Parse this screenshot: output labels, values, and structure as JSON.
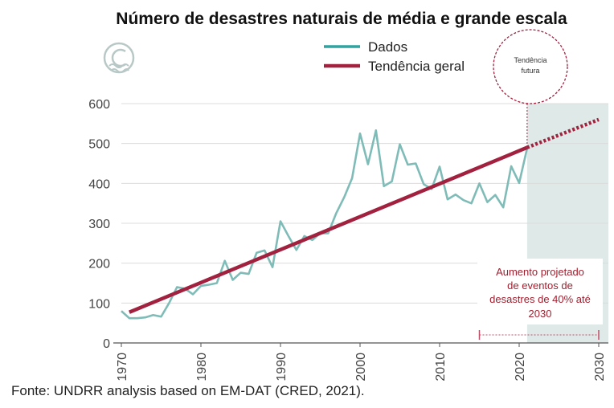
{
  "chart_data": {
    "type": "line",
    "title": "Número de desastres naturais de média e grande escala",
    "xlim": [
      1970,
      2030
    ],
    "ylim": [
      0,
      600
    ],
    "x_ticks": [
      "1970",
      "1980",
      "1990",
      "2000",
      "2010",
      "2020",
      "2030"
    ],
    "y_ticks": [
      "0",
      "100",
      "200",
      "300",
      "400",
      "500",
      "600"
    ],
    "grid": "horizontal",
    "legend_position": "top-center",
    "series": [
      {
        "name": "Dados",
        "color": "#7fbcb8",
        "x": [
          1970,
          1971,
          1972,
          1973,
          1974,
          1975,
          1976,
          1977,
          1978,
          1979,
          1980,
          1981,
          1982,
          1983,
          1984,
          1985,
          1986,
          1987,
          1988,
          1989,
          1990,
          1991,
          1992,
          1993,
          1994,
          1995,
          1996,
          1997,
          1998,
          1999,
          2000,
          2001,
          2002,
          2003,
          2004,
          2005,
          2006,
          2007,
          2008,
          2009,
          2010,
          2011,
          2012,
          2013,
          2014,
          2015,
          2016,
          2017,
          2018,
          2019,
          2020,
          2021
        ],
        "values": [
          80,
          62,
          62,
          64,
          70,
          66,
          100,
          140,
          136,
          122,
          143,
          146,
          150,
          206,
          158,
          176,
          173,
          226,
          232,
          190,
          305,
          268,
          233,
          268,
          258,
          275,
          275,
          325,
          365,
          413,
          525,
          448,
          533,
          393,
          405,
          498,
          447,
          450,
          398,
          386,
          442,
          360,
          372,
          358,
          350,
          400,
          353,
          371,
          340,
          443,
          401,
          488
        ]
      },
      {
        "name": "Tendência geral",
        "color": "#a1213f",
        "x": [
          1971,
          2021
        ],
        "values": [
          77,
          490
        ]
      },
      {
        "name": "",
        "color": "#a1213f",
        "style": "dotted",
        "x": [
          2021,
          2030
        ],
        "values": [
          490,
          560
        ]
      }
    ],
    "shaded_region": {
      "x": [
        2021,
        2030
      ],
      "color": "#dfe9e7"
    },
    "annotations": {
      "circle_label": [
        "Tendência",
        "futura"
      ],
      "projection_text": [
        "Aumento  projetado",
        "de eventos de",
        "desastres de 40% até",
        "2030"
      ],
      "projection_range": [
        2015,
        2030
      ]
    }
  },
  "source": "Fonte: UNDRR analysis based on EM-DAT (CRED, 2021).",
  "logo": {
    "icon": "wave-logo-icon"
  }
}
